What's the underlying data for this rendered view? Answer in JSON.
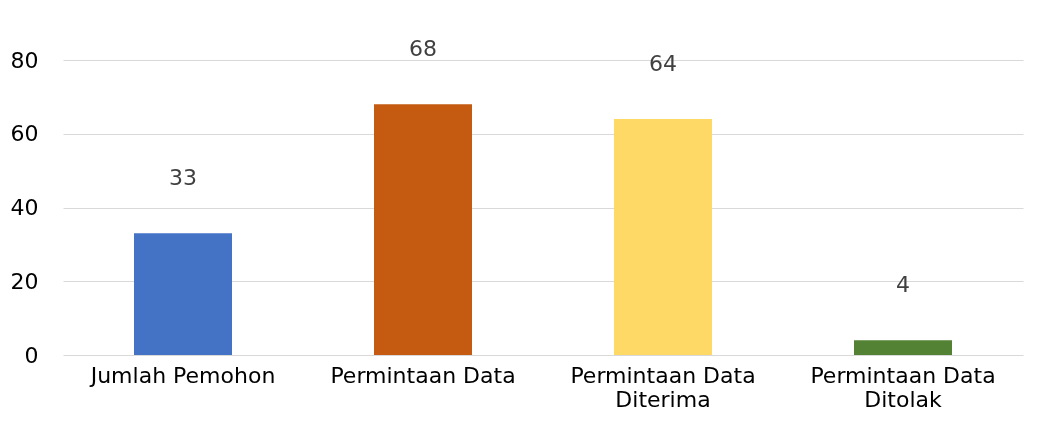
{
  "chart_data": {
    "type": "bar",
    "categories": [
      "Jumlah Pemohon",
      "Permintaan Data",
      "Permintaan Data Diterima",
      "Permintaan Data Ditolak"
    ],
    "values": [
      33,
      68,
      64,
      4
    ],
    "colors": [
      "#4472c4",
      "#c55a11",
      "#ffd966",
      "#548235"
    ],
    "ylim": [
      0,
      80
    ],
    "yticks": [
      0,
      20,
      40,
      60,
      80
    ],
    "grid": "y",
    "data_labels": true
  }
}
